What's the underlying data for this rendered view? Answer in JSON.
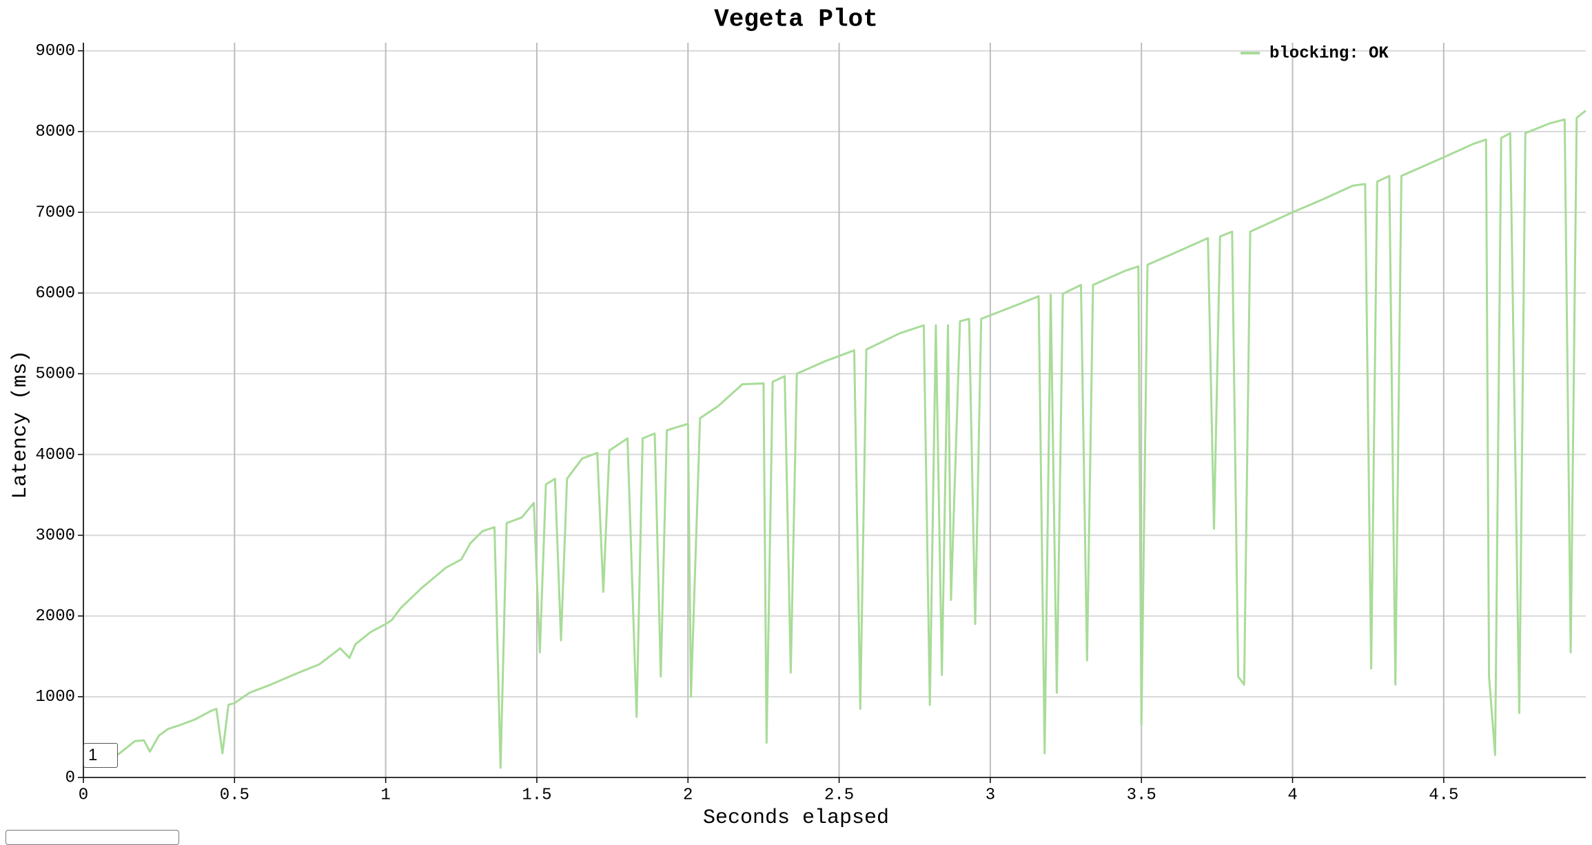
{
  "chart_data": {
    "type": "line",
    "title": "Vegeta Plot",
    "x_label": "Seconds elapsed",
    "y_label": "Latency (ms)",
    "xlim": [
      0,
      4.97
    ],
    "xticks": [
      0,
      0.5,
      1,
      1.5,
      2,
      2.5,
      3,
      3.5,
      4,
      4.5
    ],
    "ylim": [
      0,
      9100
    ],
    "yticks": [
      0,
      1000,
      2000,
      3000,
      4000,
      5000,
      6000,
      7000,
      8000,
      9000
    ],
    "grid": true,
    "legend": "top-right",
    "roll_period": "1",
    "x": [
      0.08,
      0.12,
      0.17,
      0.2,
      0.22,
      0.25,
      0.28,
      0.32,
      0.37,
      0.42,
      0.44,
      0.46,
      0.48,
      0.5,
      0.55,
      0.62,
      0.7,
      0.78,
      0.85,
      0.88,
      0.9,
      0.95,
      1.0,
      1.02,
      1.05,
      1.12,
      1.2,
      1.25,
      1.28,
      1.32,
      1.36,
      1.38,
      1.4,
      1.45,
      1.49,
      1.51,
      1.53,
      1.56,
      1.58,
      1.6,
      1.65,
      1.7,
      1.72,
      1.74,
      1.8,
      1.83,
      1.85,
      1.89,
      1.91,
      1.93,
      2.0,
      2.01,
      2.04,
      2.1,
      2.18,
      2.25,
      2.26,
      2.28,
      2.32,
      2.34,
      2.36,
      2.45,
      2.55,
      2.57,
      2.59,
      2.7,
      2.78,
      2.8,
      2.82,
      2.84,
      2.86,
      2.87,
      2.9,
      2.93,
      2.95,
      2.97,
      3.1,
      3.16,
      3.18,
      3.2,
      3.22,
      3.24,
      3.3,
      3.32,
      3.34,
      3.45,
      3.49,
      3.5,
      3.52,
      3.6,
      3.72,
      3.74,
      3.76,
      3.8,
      3.82,
      3.84,
      3.86,
      4.0,
      4.1,
      4.2,
      4.24,
      4.26,
      4.28,
      4.32,
      4.34,
      4.36,
      4.5,
      4.6,
      4.64,
      4.65,
      4.67,
      4.69,
      4.72,
      4.75,
      4.77,
      4.85,
      4.9,
      4.92,
      4.94,
      4.97
    ],
    "series": [
      {
        "name": "blocking: OK",
        "color": "#a8dc98",
        "values": [
          200,
          300,
          450,
          460,
          320,
          520,
          600,
          650,
          720,
          820,
          850,
          300,
          900,
          920,
          1050,
          1150,
          1280,
          1400,
          1600,
          1480,
          1650,
          1800,
          1900,
          1950,
          2100,
          2350,
          2600,
          2700,
          2900,
          3050,
          3100,
          120,
          3150,
          3220,
          3400,
          1550,
          3630,
          3700,
          1700,
          3700,
          3950,
          4020,
          2300,
          4050,
          4200,
          750,
          4200,
          4260,
          1250,
          4300,
          4380,
          1000,
          4450,
          4600,
          4870,
          4880,
          430,
          4900,
          4970,
          1300,
          5000,
          5150,
          5290,
          850,
          5300,
          5500,
          5600,
          900,
          5600,
          1270,
          5600,
          2200,
          5650,
          5680,
          1900,
          5680,
          5870,
          5960,
          300,
          5980,
          1050,
          5990,
          6100,
          1450,
          6100,
          6280,
          6330,
          650,
          6350,
          6480,
          6680,
          3080,
          6700,
          6760,
          1250,
          1150,
          6760,
          7000,
          7160,
          7330,
          7350,
          1350,
          7380,
          7450,
          1150,
          7450,
          7680,
          7850,
          7900,
          1250,
          280,
          7920,
          7980,
          800,
          7980,
          8100,
          8150,
          1550,
          8170,
          8260
        ]
      }
    ]
  }
}
